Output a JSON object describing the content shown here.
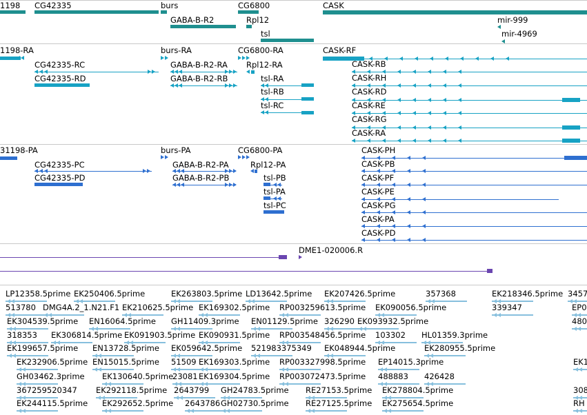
{
  "colors": {
    "gene": "#1f8f8f",
    "mrna": "#17a2c4",
    "protein": "#2e6fd0",
    "probe": "#6a45b0",
    "est": "#86bfdd",
    "separator": "#c8c8c8"
  },
  "tracks": {
    "genes": [
      {
        "label": "1198"
      },
      {
        "label": "CG42335"
      },
      {
        "label": "burs"
      },
      {
        "label": "GABA-B-R2"
      },
      {
        "label": "CG6800"
      },
      {
        "label": "Rpl12"
      },
      {
        "label": "tsl"
      },
      {
        "label": "CASK"
      },
      {
        "label": "mir-999"
      },
      {
        "label": "mir-4969"
      }
    ],
    "transcripts": [
      {
        "label": "1198-RA"
      },
      {
        "label": "CG42335-RC"
      },
      {
        "label": "CG42335-RD"
      },
      {
        "label": "burs-RA"
      },
      {
        "label": "GABA-B-R2-RA"
      },
      {
        "label": "GABA-B-R2-RB"
      },
      {
        "label": "CG6800-RA"
      },
      {
        "label": "Rpl12-RA"
      },
      {
        "label": "tsl-RA"
      },
      {
        "label": "tsl-RB"
      },
      {
        "label": "tsl-RC"
      },
      {
        "label": "CASK-RF"
      },
      {
        "label": "CASK-RB"
      },
      {
        "label": "CASK-RH"
      },
      {
        "label": "CASK-RD"
      },
      {
        "label": "CASK-RE"
      },
      {
        "label": "CASK-RG"
      },
      {
        "label": "CASK-RA"
      }
    ],
    "proteins": [
      {
        "label": "31198-PA"
      },
      {
        "label": "CG42335-PC"
      },
      {
        "label": "CG42335-PD"
      },
      {
        "label": "burs-PA"
      },
      {
        "label": "GABA-B-R2-PA"
      },
      {
        "label": "GABA-B-R2-PB"
      },
      {
        "label": "CG6800-PA"
      },
      {
        "label": "Rpl12-PA"
      },
      {
        "label": "tsl-PB"
      },
      {
        "label": "tsl-PA"
      },
      {
        "label": "tsl-PC"
      },
      {
        "label": "CASK-PH"
      },
      {
        "label": "CASK-PB"
      },
      {
        "label": "CASK-PF"
      },
      {
        "label": "CASK-PE"
      },
      {
        "label": "CASK-PG"
      },
      {
        "label": "CASK-PA"
      },
      {
        "label": "CASK-PD"
      }
    ],
    "probes": [
      {
        "label": "DME1-020006.R"
      }
    ],
    "ests": [
      {
        "label": "LP12358.5prime"
      },
      {
        "label": "EK250406.5prime"
      },
      {
        "label": "EK263803.5prime"
      },
      {
        "label": "LD13642.5prime"
      },
      {
        "label": "EK207426.5prime"
      },
      {
        "label": "357368"
      },
      {
        "label": "EK218346.5prime"
      },
      {
        "label": "3457"
      },
      {
        "label": "513780"
      },
      {
        "label": "DMG4A.2_1.N21.F1"
      },
      {
        "label": "EK210625.5prime"
      },
      {
        "label": "EK169302.5prime"
      },
      {
        "label": "RP003259613.5prime"
      },
      {
        "label": "EK090056.5prime"
      },
      {
        "label": "339347"
      },
      {
        "label": "EP0"
      },
      {
        "label": "EK304539.5prime"
      },
      {
        "label": "EN16064.5prime"
      },
      {
        "label": "GH11409.3prime"
      },
      {
        "label": "EN01129.5prime"
      },
      {
        "label": "326290"
      },
      {
        "label": "EK093932.5prime"
      },
      {
        "label": "480"
      },
      {
        "label": "318353"
      },
      {
        "label": "EK306814.5prime"
      },
      {
        "label": "EK091903.5prime"
      },
      {
        "label": "EK090931.5prime"
      },
      {
        "label": "RP003548456.5prime"
      },
      {
        "label": "103302"
      },
      {
        "label": "HL01359.3prime"
      },
      {
        "label": "EK199657.5prime"
      },
      {
        "label": "EN13728.5prime"
      },
      {
        "label": "EK059642.5prime"
      },
      {
        "label": "521983375349"
      },
      {
        "label": "EK048944.5prime"
      },
      {
        "label": "EK280955.5prime"
      },
      {
        "label": "EK232906.5prime"
      },
      {
        "label": "EN15015.5prime"
      },
      {
        "label": "51509"
      },
      {
        "label": "EK169303.5prime"
      },
      {
        "label": "RP003327998.5prime"
      },
      {
        "label": "EP14015.3prime"
      },
      {
        "label": "EK1"
      },
      {
        "label": "GH03462.3prime"
      },
      {
        "label": "EK130640.5prime"
      },
      {
        "label": "23081"
      },
      {
        "label": "EK169304.5prime"
      },
      {
        "label": "RP003072473.5prime"
      },
      {
        "label": "488883"
      },
      {
        "label": "426428"
      },
      {
        "label": "367259520347"
      },
      {
        "label": "EK292118.5prime"
      },
      {
        "label": "2643799"
      },
      {
        "label": "GH24783.5prime"
      },
      {
        "label": "RE27153.5prime"
      },
      {
        "label": "EK278804.5prime"
      },
      {
        "label": "308"
      },
      {
        "label": "EK244115.5prime"
      },
      {
        "label": "EK292652.5prime"
      },
      {
        "label": "2643786"
      },
      {
        "label": "GH02730.5prime"
      },
      {
        "label": "RE27125.5prime"
      },
      {
        "label": "EK275654.5prime"
      },
      {
        "label": "RH"
      }
    ]
  }
}
